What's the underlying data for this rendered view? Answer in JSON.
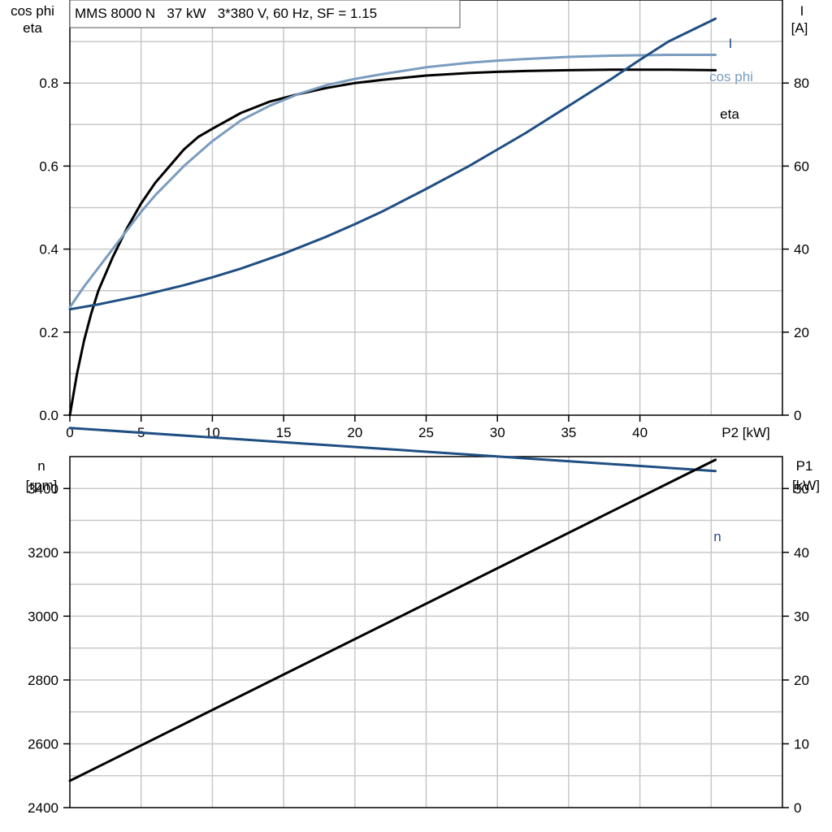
{
  "colors": {
    "black": "#000000",
    "blue": "#1f4e82",
    "lightblue": "#7a9cbf",
    "grid": "#c8c8c8"
  },
  "chart_data": [
    {
      "type": "line",
      "title": "MMS 8000 N   37 kW   3*380 V, 60 Hz, SF = 1.15",
      "xlabel": "P2 [kW]",
      "ylabel_left": [
        "cos phi",
        "eta"
      ],
      "ylabel_right": [
        "I",
        "[A]"
      ],
      "xlim": [
        0,
        50
      ],
      "ylim_left": [
        0,
        1.0
      ],
      "ylim_right": [
        0,
        100
      ],
      "xticks": [
        "0",
        "5",
        "10",
        "15",
        "20",
        "25",
        "30",
        "35",
        "40"
      ],
      "yticks_left": [
        "0.0",
        "0.2",
        "0.4",
        "0.6",
        "0.8"
      ],
      "yticks_right": [
        "0",
        "20",
        "40",
        "60",
        "80"
      ],
      "grid": true,
      "series": [
        {
          "name": "eta",
          "axis": "left",
          "color": "black",
          "x": [
            0,
            0.5,
            1,
            1.5,
            2,
            3,
            4,
            5,
            6,
            7,
            8,
            9,
            10,
            12,
            14,
            16,
            18,
            20,
            22,
            25,
            28,
            30,
            32,
            35,
            38,
            40,
            42,
            45.3
          ],
          "y": [
            0,
            0.1,
            0.18,
            0.245,
            0.3,
            0.38,
            0.45,
            0.51,
            0.56,
            0.6,
            0.64,
            0.67,
            0.69,
            0.728,
            0.755,
            0.773,
            0.788,
            0.8,
            0.808,
            0.818,
            0.824,
            0.827,
            0.829,
            0.831,
            0.832,
            0.832,
            0.832,
            0.831
          ]
        },
        {
          "name": "cos phi",
          "axis": "left",
          "color": "lightblue",
          "x": [
            0,
            1,
            2,
            3,
            4,
            5,
            6,
            8,
            10,
            12,
            14,
            16,
            18,
            20,
            22,
            25,
            28,
            30,
            32,
            35,
            38,
            40,
            42,
            45.3
          ],
          "y": [
            0.26,
            0.31,
            0.355,
            0.4,
            0.445,
            0.49,
            0.53,
            0.6,
            0.66,
            0.71,
            0.745,
            0.773,
            0.795,
            0.81,
            0.822,
            0.838,
            0.849,
            0.854,
            0.858,
            0.863,
            0.866,
            0.867,
            0.868,
            0.868
          ]
        },
        {
          "name": "I",
          "axis": "right",
          "color": "blue",
          "x": [
            0,
            2,
            5,
            8,
            10,
            12,
            15,
            18,
            20,
            22,
            25,
            28,
            30,
            32,
            35,
            38,
            40,
            42,
            45.3
          ],
          "y": [
            25.5,
            26.7,
            28.8,
            31.3,
            33.2,
            35.3,
            38.9,
            43.0,
            46.0,
            49.2,
            54.5,
            60.0,
            64.0,
            68.0,
            74.5,
            81.0,
            85.6,
            90.0,
            95.5
          ]
        }
      ]
    },
    {
      "type": "line",
      "xlim": [
        0,
        50
      ],
      "ylabel_left": [
        "n",
        "[rpm]"
      ],
      "ylabel_right": [
        "P1",
        "[kW]"
      ],
      "ylim_left": [
        2400,
        3500
      ],
      "ylim_right": [
        0,
        55
      ],
      "yticks_left": [
        "2400",
        "2600",
        "2800",
        "3000",
        "3200",
        "3400"
      ],
      "yticks_right": [
        "0",
        "10",
        "20",
        "30",
        "40",
        "50"
      ],
      "grid": true,
      "series": [
        {
          "name": "n",
          "axis": "left",
          "color": "blue",
          "x": [
            0,
            45.3
          ],
          "y": [
            3590,
            3455
          ]
        },
        {
          "name": "",
          "axis": "right",
          "color": "black",
          "x": [
            0,
            45.3
          ],
          "y": [
            4.2,
            54.5
          ]
        }
      ]
    }
  ]
}
